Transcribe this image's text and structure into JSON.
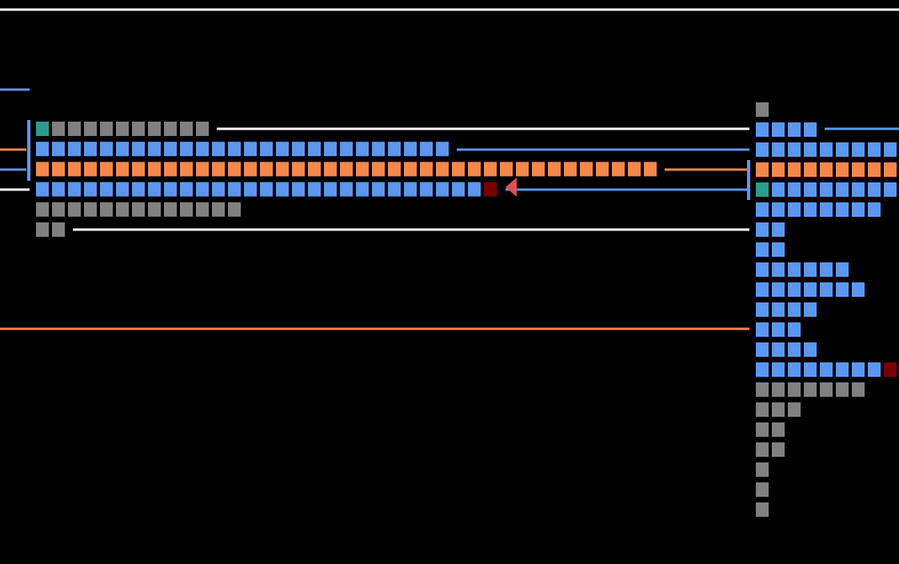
{
  "palette": {
    "gray": "#808080",
    "blue": "#5b97f0",
    "orange": "#f5884c",
    "teal": "#2a9d8f",
    "red": "#7a0000"
  },
  "left_rows": [
    [
      {
        "color": "teal",
        "count": 1
      },
      {
        "color": "gray",
        "count": 10
      }
    ],
    [
      {
        "color": "blue",
        "count": 26
      }
    ],
    [
      {
        "color": "orange",
        "count": 39
      }
    ],
    [
      {
        "color": "blue",
        "count": 28
      },
      {
        "color": "red",
        "count": 1
      }
    ],
    [
      {
        "color": "gray",
        "count": 13
      }
    ],
    [
      {
        "color": "gray",
        "count": 2
      }
    ]
  ],
  "right_rows": [
    [
      {
        "color": "gray",
        "count": 1
      }
    ],
    [
      {
        "color": "blue",
        "count": 4
      }
    ],
    [
      {
        "color": "blue",
        "count": 9
      }
    ],
    [
      {
        "color": "orange",
        "count": 9
      }
    ],
    [
      {
        "color": "teal",
        "count": 1
      },
      {
        "color": "blue",
        "count": 8
      }
    ],
    [
      {
        "color": "blue",
        "count": 8
      }
    ],
    [
      {
        "color": "blue",
        "count": 2
      }
    ],
    [
      {
        "color": "blue",
        "count": 2
      }
    ],
    [
      {
        "color": "blue",
        "count": 6
      }
    ],
    [
      {
        "color": "blue",
        "count": 7
      }
    ],
    [
      {
        "color": "blue",
        "count": 4
      }
    ],
    [
      {
        "color": "blue",
        "count": 3
      }
    ],
    [
      {
        "color": "blue",
        "count": 4
      }
    ],
    [
      {
        "color": "blue",
        "count": 8
      },
      {
        "color": "red",
        "count": 1
      }
    ],
    [
      {
        "color": "gray",
        "count": 7
      }
    ],
    [
      {
        "color": "gray",
        "count": 3
      }
    ],
    [
      {
        "color": "gray",
        "count": 2
      }
    ],
    [
      {
        "color": "gray",
        "count": 2
      }
    ],
    [
      {
        "color": "gray",
        "count": 1
      }
    ],
    [
      {
        "color": "gray",
        "count": 1
      }
    ],
    [
      {
        "color": "gray",
        "count": 1
      }
    ]
  ]
}
